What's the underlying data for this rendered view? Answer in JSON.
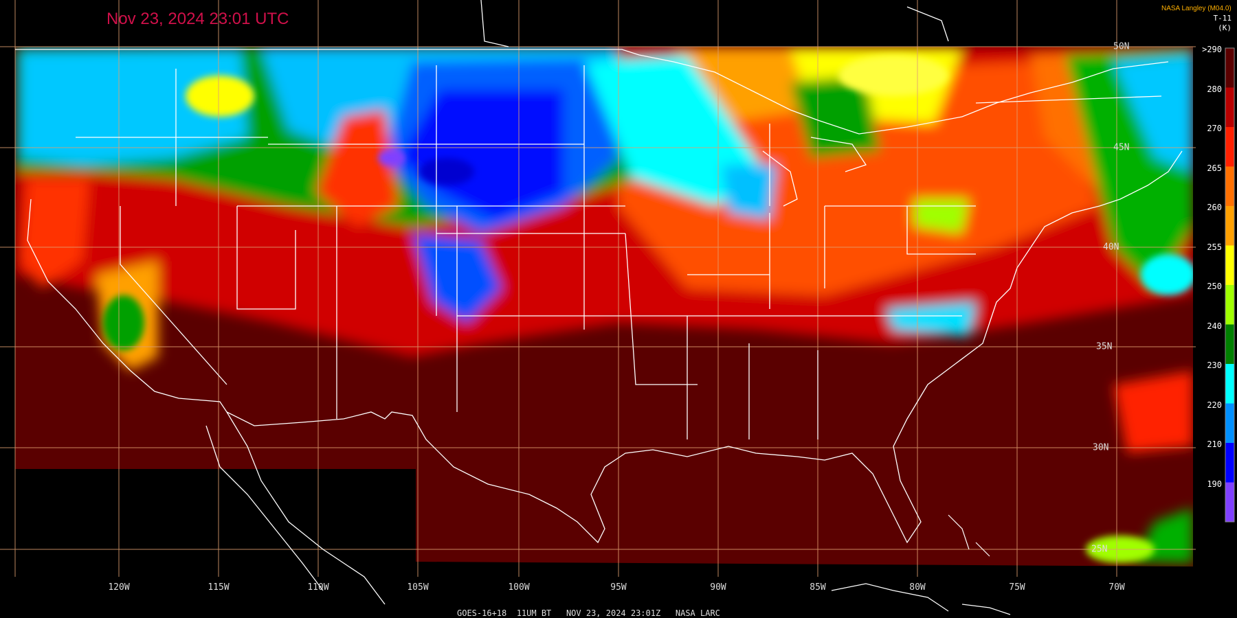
{
  "header": {
    "timestamp": "Nov 23, 2024 23:01 UTC",
    "credit": "NASA Langley (M04.0)"
  },
  "colorbar": {
    "title_line1": "T-11",
    "title_line2": "(K)",
    "labels": [
      ">290",
      "280",
      "270",
      "265",
      "260",
      "255",
      "250",
      "240",
      "230",
      "220",
      "210",
      "190"
    ],
    "colors": [
      "#5a0000",
      "#b80000",
      "#ff2000",
      "#ff7000",
      "#ffa000",
      "#ffff00",
      "#a0ff00",
      "#008000",
      "#00ffff",
      "#0090ff",
      "#0000ff",
      "#8040ff"
    ]
  },
  "map": {
    "lon_labels": [
      "120W",
      "115W",
      "110W",
      "105W",
      "100W",
      "95W",
      "90W",
      "85W",
      "80W",
      "75W",
      "70W"
    ],
    "lat_labels": [
      "50N",
      "45N",
      "40N",
      "35N",
      "30N",
      "25N"
    ],
    "legend_colors": {
      "warm_ground": "#5a0000",
      "graticule": "#e0a070",
      "boundaries": "#ffffff",
      "no_data": "#000000"
    }
  },
  "footer": {
    "text": "GOES-16+18  11UM BT   NOV 23, 2024 23:01Z   NASA LARC"
  }
}
